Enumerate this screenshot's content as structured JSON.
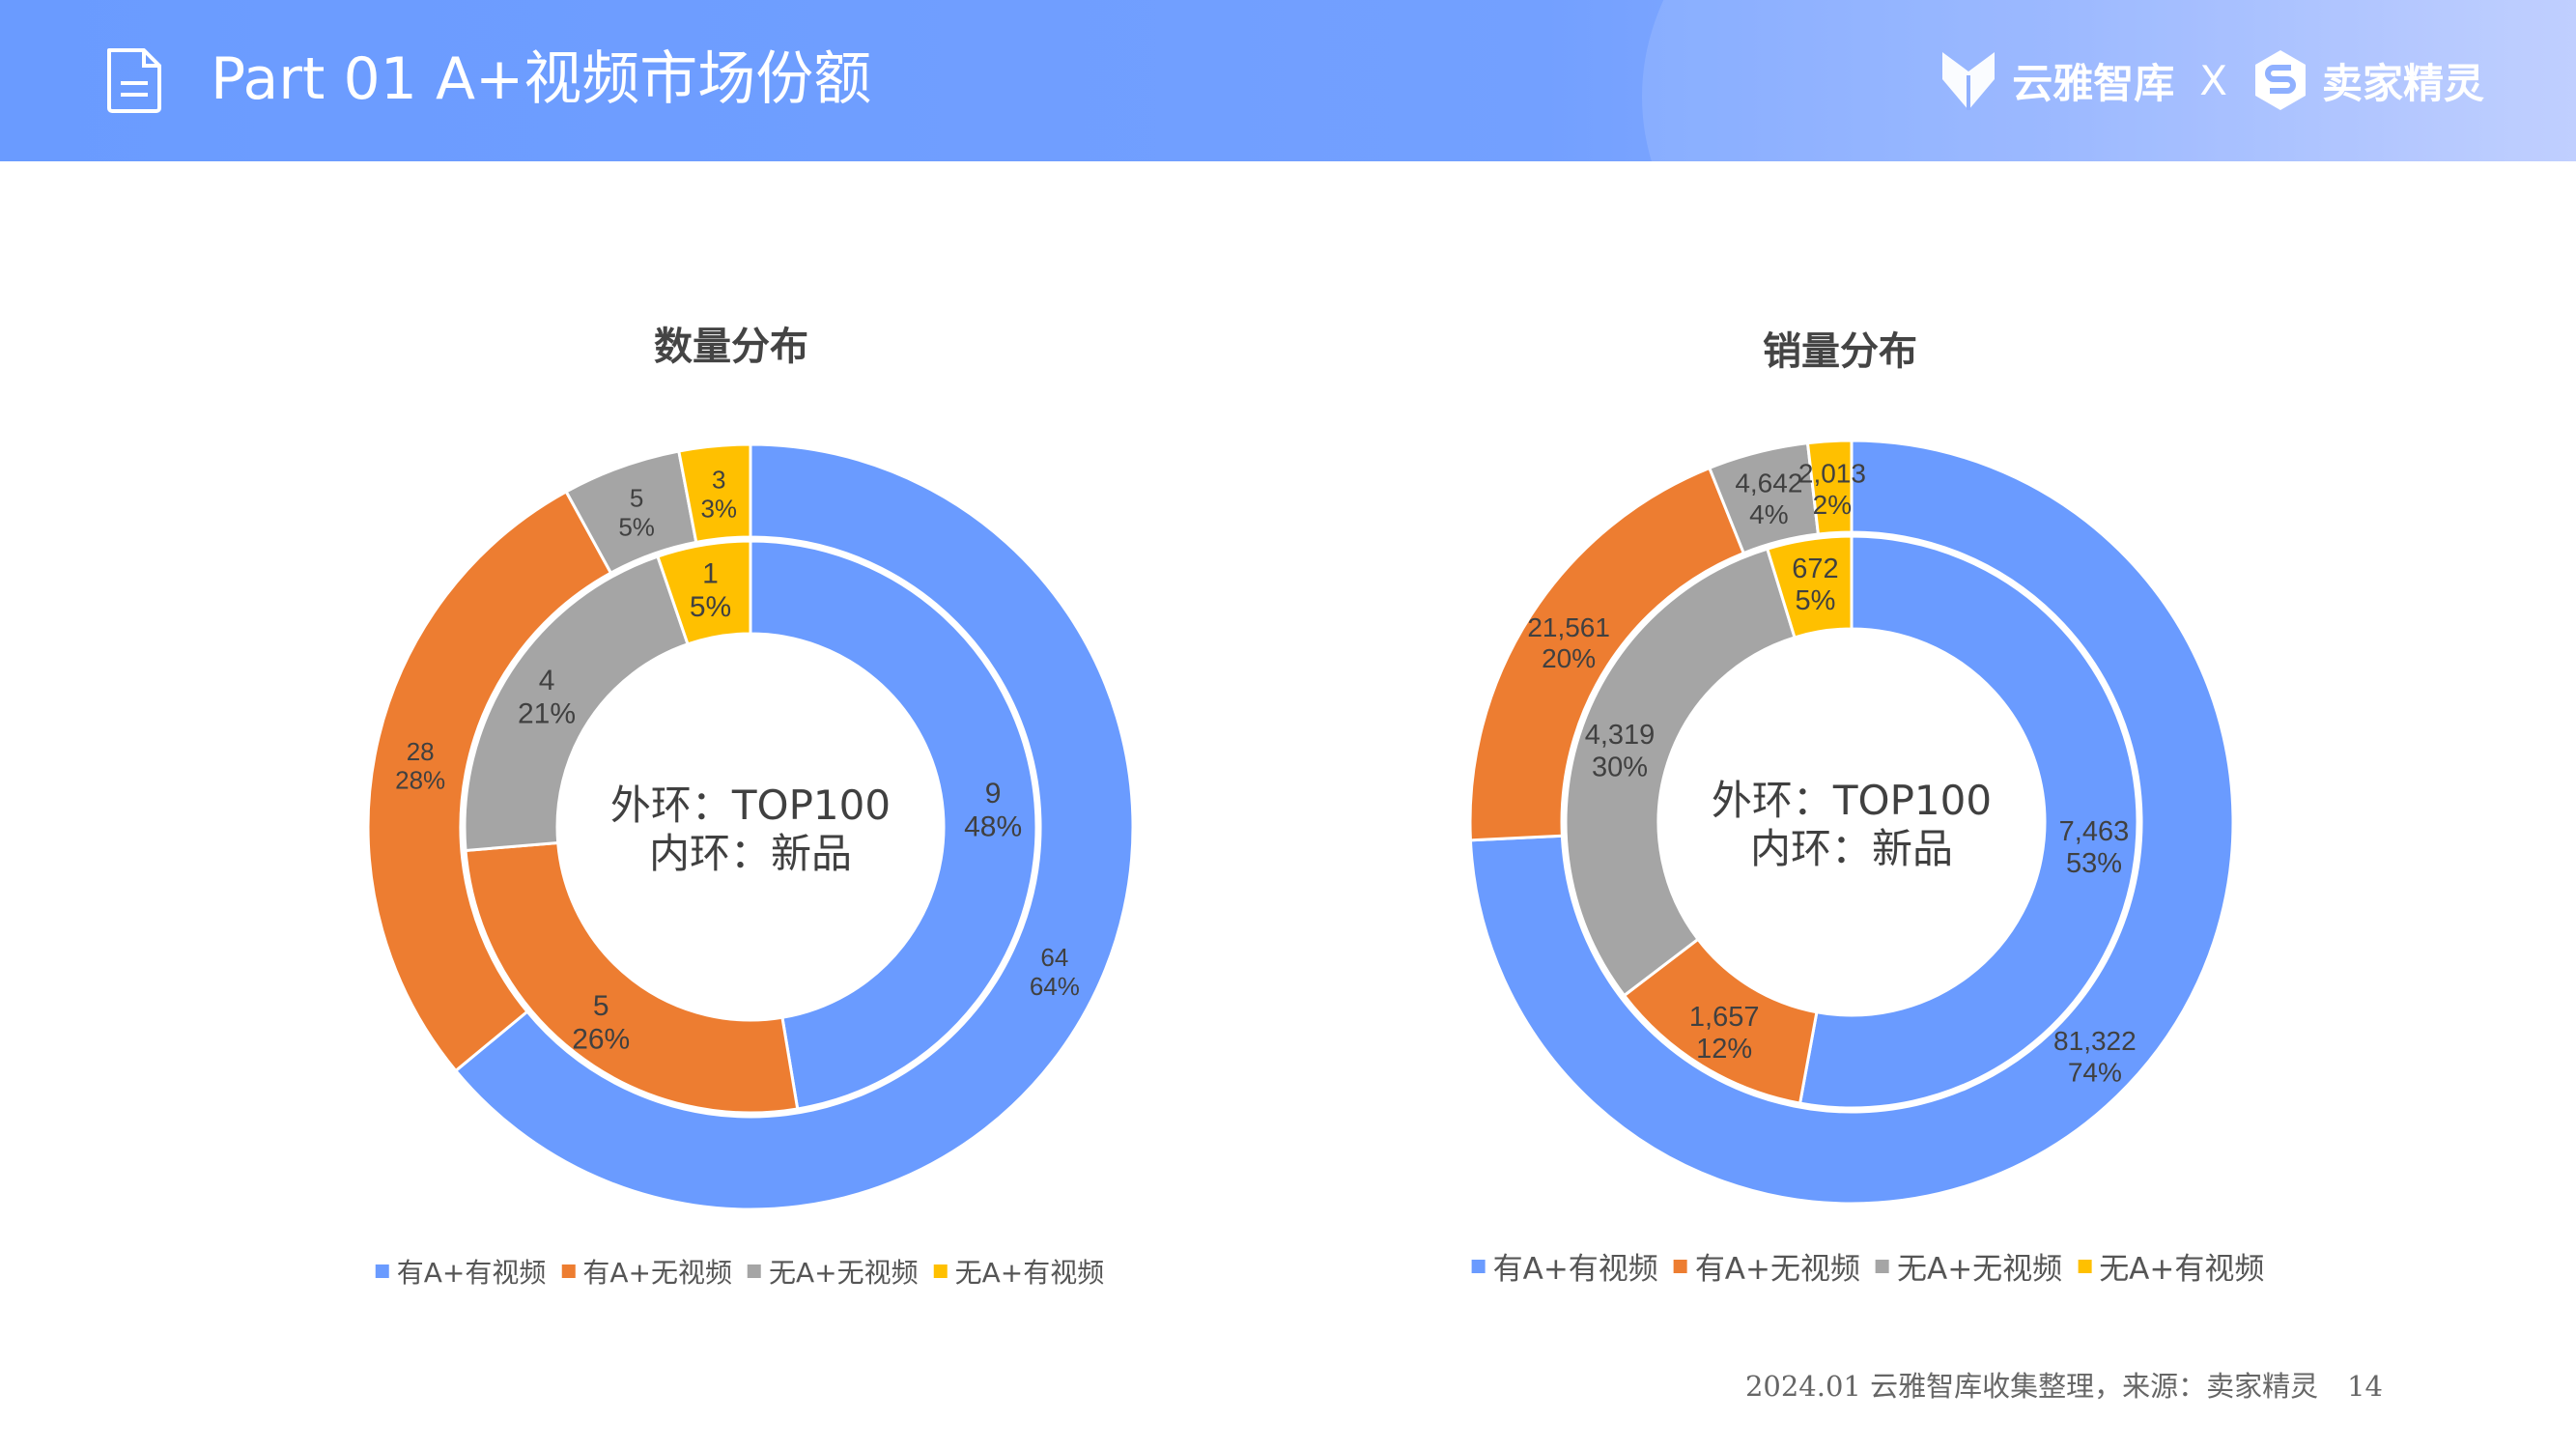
{
  "header": {
    "title": "Part 01  A+视频市场份额",
    "brand_left": "云雅智库",
    "brand_sep": "X",
    "brand_right": "卖家精灵",
    "icon": "document-icon"
  },
  "colors": {
    "有A+有视频": "#6a9bff",
    "有A+无视频": "#ed7d31",
    "无A+无视频": "#a5a5a5",
    "无A+有视频": "#ffc000",
    "header": "#6a9bff"
  },
  "chart_data": [
    {
      "type": "donut",
      "title": "数量分布",
      "center_text": [
        "外环：TOP100",
        "内环：新品"
      ],
      "categories": [
        "有A+有视频",
        "有A+无视频",
        "无A+无视频",
        "无A+有视频"
      ],
      "series": [
        {
          "ring": "outer",
          "values": [
            64,
            28,
            5,
            3
          ],
          "labels": [
            "64",
            "28",
            "5",
            "3"
          ],
          "percents": [
            "64%",
            "28%",
            "5%",
            "3%"
          ]
        },
        {
          "ring": "inner",
          "values": [
            9,
            5,
            4,
            1
          ],
          "labels": [
            "9",
            "5",
            "4",
            "1"
          ],
          "percents": [
            "48%",
            "26%",
            "21%",
            "5%"
          ]
        }
      ],
      "legend": [
        "有A+有视频",
        "有A+无视频",
        "无A+无视频",
        "无A+有视频"
      ],
      "legend_position": "bottom"
    },
    {
      "type": "donut",
      "title": "销量分布",
      "center_text": [
        "外环：TOP100",
        "内环：新品"
      ],
      "categories": [
        "有A+有视频",
        "有A+无视频",
        "无A+无视频",
        "无A+有视频"
      ],
      "series": [
        {
          "ring": "outer",
          "values": [
            81322,
            21561,
            4642,
            2013
          ],
          "labels": [
            "81,322",
            "21,561",
            "4,642",
            "2,013"
          ],
          "percents": [
            "74%",
            "20%",
            "4%",
            "2%"
          ]
        },
        {
          "ring": "inner",
          "values": [
            7463,
            1657,
            4319,
            672
          ],
          "labels": [
            "7,463",
            "1,657",
            "4,319",
            "672"
          ],
          "percents": [
            "53%",
            "12%",
            "30%",
            "5%"
          ]
        }
      ],
      "legend": [
        "有A+有视频",
        "有A+无视频",
        "无A+无视频",
        "无A+有视频"
      ],
      "legend_position": "bottom"
    }
  ],
  "footer": {
    "source": "2024.01 云雅智库收集整理，来源：卖家精灵",
    "page_number": "14"
  }
}
